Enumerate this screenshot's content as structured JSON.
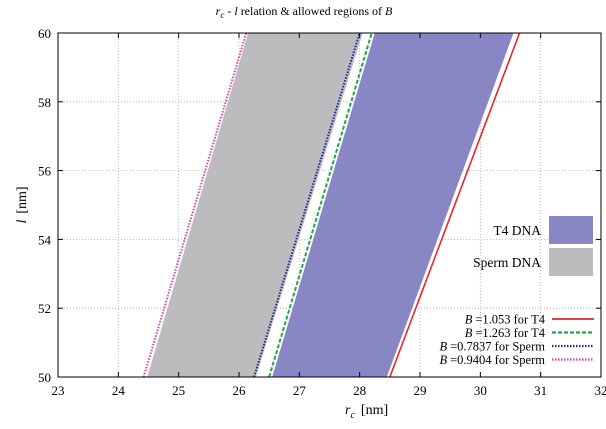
{
  "chart_data": {
    "type": "area",
    "title": {
      "pre": "r",
      "pre_sub": "c",
      "mid": " - ",
      "mid_italic": "l",
      "post": " relation & allowed regions of ",
      "post_italic": "B"
    },
    "xlabel": {
      "var": "r",
      "sub": "c",
      "unit": "[nm]"
    },
    "ylabel": {
      "var": "l",
      "unit": "[nm]"
    },
    "xlim": [
      23,
      32
    ],
    "ylim": [
      50,
      60
    ],
    "xticks": [
      "23",
      "24",
      "25",
      "26",
      "27",
      "28",
      "29",
      "30",
      "31",
      "32"
    ],
    "yticks": [
      "50",
      "52",
      "54",
      "56",
      "58",
      "60"
    ],
    "grid": true,
    "regions": [
      {
        "name": "T4 DNA",
        "color": "#8886c4",
        "left": [
          [
            26.55,
            50
          ],
          [
            28.25,
            60
          ]
        ],
        "right": [
          [
            28.45,
            50
          ],
          [
            30.55,
            60
          ]
        ]
      },
      {
        "name": "Sperm DNA",
        "color": "#bcbcbf",
        "left": [
          [
            24.48,
            50
          ],
          [
            26.15,
            60
          ]
        ],
        "right": [
          [
            26.28,
            50
          ],
          [
            28.05,
            60
          ]
        ]
      }
    ],
    "series": [
      {
        "prefix": "B",
        "value": "=1.053 for T4",
        "color": "#e8262c",
        "dash": "solid",
        "points": [
          [
            28.5,
            50
          ],
          [
            30.65,
            60
          ]
        ]
      },
      {
        "prefix": "B",
        "value": "=1.263 for T4",
        "color": "#20a64a",
        "dash": "dashed",
        "points": [
          [
            26.5,
            50
          ],
          [
            28.2,
            60
          ]
        ]
      },
      {
        "prefix": "B",
        "value": "=0.7837 for Sperm",
        "color": "#22229c",
        "dash": "dotted",
        "points": [
          [
            26.25,
            50
          ],
          [
            28.0,
            60
          ]
        ]
      },
      {
        "prefix": "B",
        "value": "=0.9404 for Sperm",
        "color": "#e0409a",
        "dash": "dotted",
        "points": [
          [
            24.42,
            50
          ],
          [
            26.12,
            60
          ]
        ]
      }
    ],
    "legend_position": "bottom-right"
  }
}
